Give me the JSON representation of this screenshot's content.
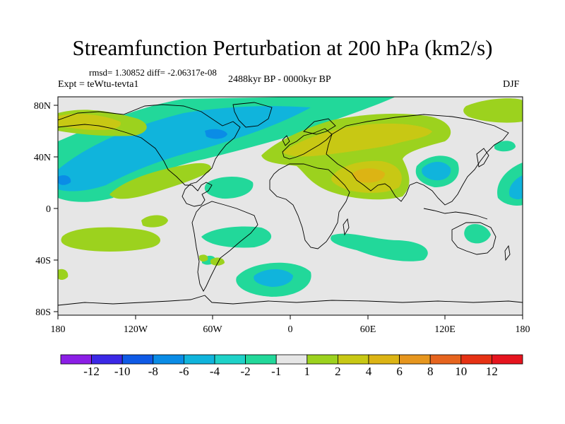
{
  "title": "Streamfunction Perturbation at 200 hPa (km2/s)",
  "stats": "rmsd= 1.30852 diff= -2.06317e-08",
  "experiment": "Expt = teWtu-tevta1",
  "period": "2488kyr BP - 0000kyr BP",
  "season": "DJF",
  "lat_ticks": [
    "80N",
    "40N",
    "0",
    "40S",
    "80S"
  ],
  "lon_ticks": [
    "180",
    "120W",
    "60W",
    "0",
    "60E",
    "120E",
    "180"
  ],
  "colorbar": {
    "labels": [
      "-12",
      "-10",
      "-8",
      "-6",
      "-4",
      "-2",
      "-1",
      "1",
      "2",
      "4",
      "6",
      "8",
      "10",
      "12"
    ],
    "colors": [
      "#8b1ee6",
      "#3b28e6",
      "#0f5ae6",
      "#0a8ce6",
      "#10b4dc",
      "#1ed2c8",
      "#22d89a",
      "#e6e6e6",
      "#9cd21e",
      "#c8c814",
      "#dcb414",
      "#e6961e",
      "#e6641e",
      "#e63214",
      "#e6141e"
    ]
  },
  "colors": {
    "background": "#e6e6e6",
    "coast": "#000000"
  }
}
